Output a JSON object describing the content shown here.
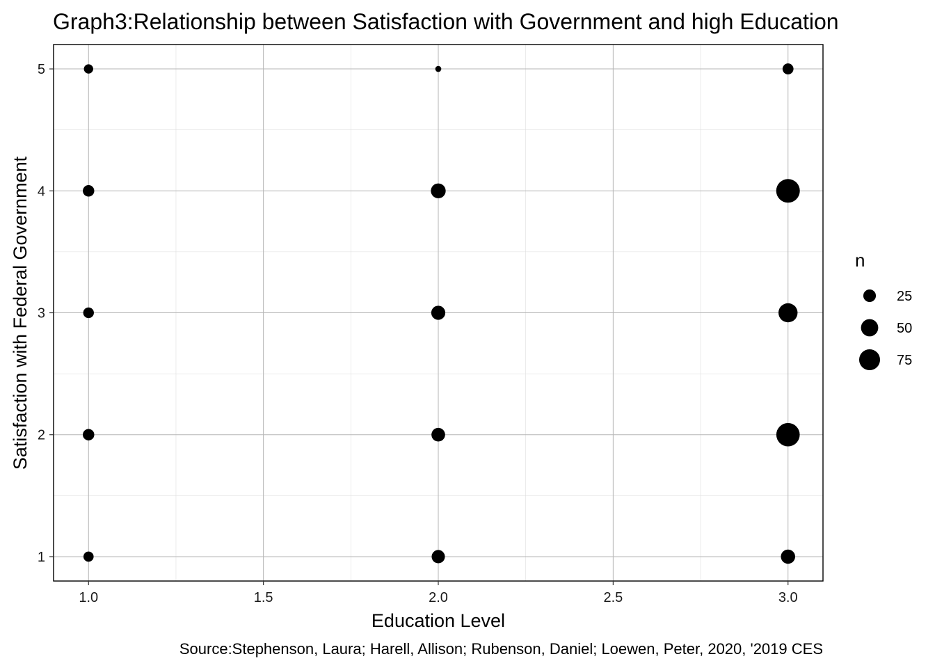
{
  "chart_data": {
    "type": "scatter",
    "title": "Graph3:Relationship between Satisfaction with Government and high Education",
    "xlabel": "Education Level",
    "ylabel": "Satisfaction with Federal Government",
    "caption": "Source:Stephenson, Laura; Harell, Allison; Rubenson, Daniel; Loewen, Peter, 2020, '2019 CES",
    "xlim": [
      0.9,
      3.1
    ],
    "ylim": [
      0.8,
      5.2
    ],
    "x_ticks": [
      1.0,
      1.5,
      2.0,
      2.5,
      3.0
    ],
    "x_tick_labels": [
      "1.0",
      "1.5",
      "2.0",
      "2.5",
      "3.0"
    ],
    "y_ticks": [
      1,
      2,
      3,
      4,
      5
    ],
    "y_tick_labels": [
      "1",
      "2",
      "3",
      "4",
      "5"
    ],
    "grid": true,
    "size_variable": "n",
    "legend": {
      "title": "n",
      "placement": "right",
      "entries": [
        {
          "value": 25,
          "label": "25"
        },
        {
          "value": 50,
          "label": "50"
        },
        {
          "value": 75,
          "label": "75"
        }
      ]
    },
    "points": [
      {
        "x": 1,
        "y": 5,
        "n": 12
      },
      {
        "x": 1,
        "y": 4,
        "n": 20
      },
      {
        "x": 1,
        "y": 3,
        "n": 17
      },
      {
        "x": 1,
        "y": 2,
        "n": 20
      },
      {
        "x": 1,
        "y": 1,
        "n": 15
      },
      {
        "x": 2,
        "y": 5,
        "n": 3
      },
      {
        "x": 2,
        "y": 4,
        "n": 36
      },
      {
        "x": 2,
        "y": 3,
        "n": 32
      },
      {
        "x": 2,
        "y": 2,
        "n": 30
      },
      {
        "x": 2,
        "y": 1,
        "n": 28
      },
      {
        "x": 3,
        "y": 5,
        "n": 18
      },
      {
        "x": 3,
        "y": 4,
        "n": 97
      },
      {
        "x": 3,
        "y": 3,
        "n": 62
      },
      {
        "x": 3,
        "y": 2,
        "n": 95
      },
      {
        "x": 3,
        "y": 1,
        "n": 33
      }
    ],
    "colors": {
      "point": "#000000",
      "panel_border": "#000000",
      "grid_major": "#b5b5b5",
      "grid_minor": "#dedede"
    }
  }
}
